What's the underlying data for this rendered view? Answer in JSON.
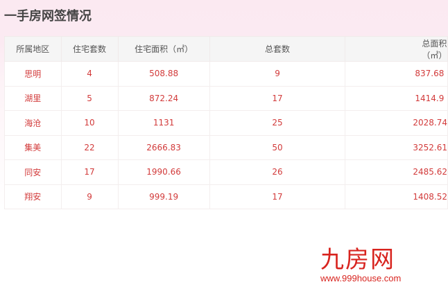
{
  "title": "一手房网签情况",
  "table": {
    "headers": [
      "所属地区",
      "住宅套数",
      "住宅面积（㎡）",
      "总套数",
      "总面积（㎡）"
    ],
    "rows": [
      [
        "思明",
        "4",
        "508.88",
        "9",
        "837.68"
      ],
      [
        "湖里",
        "5",
        "872.24",
        "17",
        "1414.9"
      ],
      [
        "海沧",
        "10",
        "1131",
        "25",
        "2028.74"
      ],
      [
        "集美",
        "22",
        "2666.83",
        "50",
        "3252.61"
      ],
      [
        "同安",
        "17",
        "1990.66",
        "26",
        "2485.62"
      ],
      [
        "翔安",
        "9",
        "999.19",
        "17",
        "1408.52"
      ]
    ]
  },
  "logo": {
    "text": "九房网",
    "url": "www.999house.com"
  },
  "colors": {
    "accent": "#d23a3a",
    "logo": "#d8241f"
  }
}
